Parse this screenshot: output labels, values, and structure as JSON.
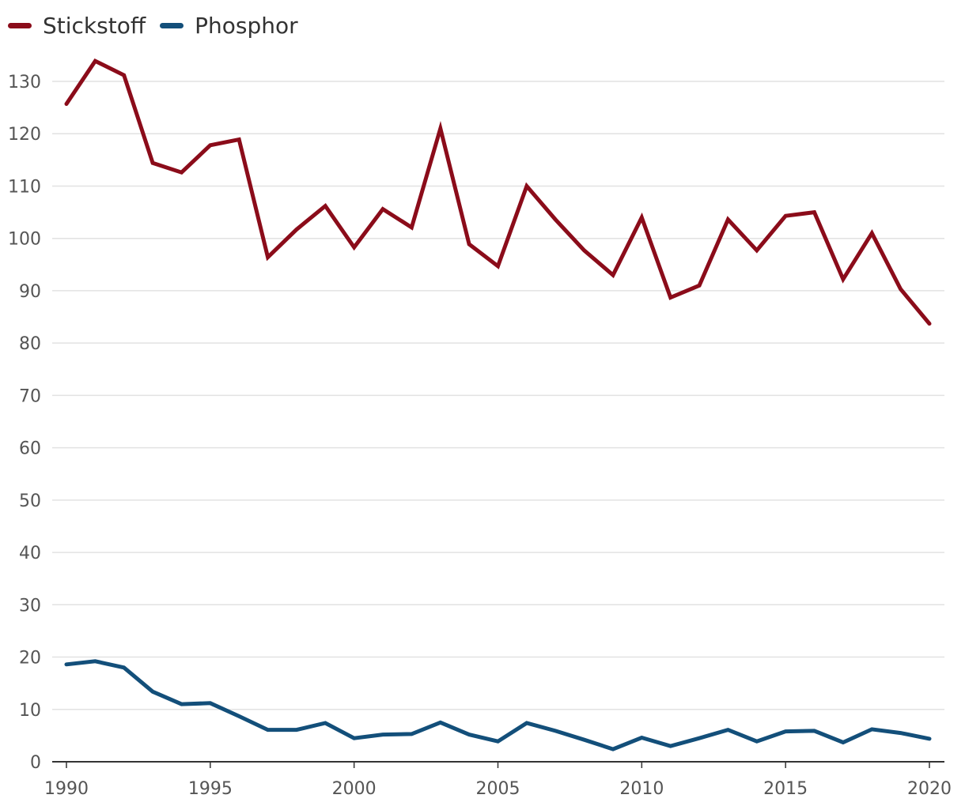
{
  "legend": [
    {
      "name": "Stickstoff",
      "color": "#8b0c1a"
    },
    {
      "name": "Phosphor",
      "color": "#134f7a"
    }
  ],
  "chart_data": {
    "type": "line",
    "title": "",
    "xlabel": "",
    "ylabel": "",
    "x": [
      1990,
      1991,
      1992,
      1993,
      1994,
      1995,
      1996,
      1997,
      1998,
      1999,
      2000,
      2001,
      2002,
      2003,
      2004,
      2005,
      2006,
      2007,
      2008,
      2009,
      2010,
      2011,
      2012,
      2013,
      2014,
      2015,
      2016,
      2017,
      2018,
      2019,
      2020
    ],
    "xlim": [
      1990,
      2020
    ],
    "ylim": [
      0,
      130
    ],
    "x_ticks": [
      "1990",
      "1995",
      "2000",
      "2005",
      "2010",
      "2015",
      "2020"
    ],
    "y_ticks": [
      "0",
      "10",
      "20",
      "30",
      "40",
      "50",
      "60",
      "70",
      "80",
      "90",
      "100",
      "110",
      "120",
      "130"
    ],
    "grid": "horizontal",
    "legend_position": "top-left",
    "series": [
      {
        "name": "Stickstoff",
        "color": "#8b0c1a",
        "values": [
          125.7,
          133.9,
          131.2,
          114.4,
          112.6,
          117.8,
          118.9,
          96.4,
          101.7,
          106.2,
          98.3,
          105.6,
          102.1,
          121.0,
          98.9,
          94.7,
          110.0,
          103.6,
          97.7,
          93.0,
          104.0,
          88.7,
          91.0,
          103.6,
          97.7,
          104.3,
          105.0,
          92.2,
          101.0,
          90.3,
          83.7
        ]
      },
      {
        "name": "Phosphor",
        "color": "#134f7a",
        "values": [
          18.6,
          19.2,
          18.0,
          13.4,
          11.0,
          11.2,
          8.7,
          6.1,
          6.1,
          7.4,
          4.5,
          5.2,
          5.3,
          7.5,
          5.2,
          3.9,
          7.4,
          5.9,
          4.2,
          2.4,
          4.6,
          3.0,
          4.5,
          6.1,
          3.9,
          5.8,
          5.9,
          3.7,
          6.2,
          5.5,
          4.4
        ]
      }
    ]
  }
}
